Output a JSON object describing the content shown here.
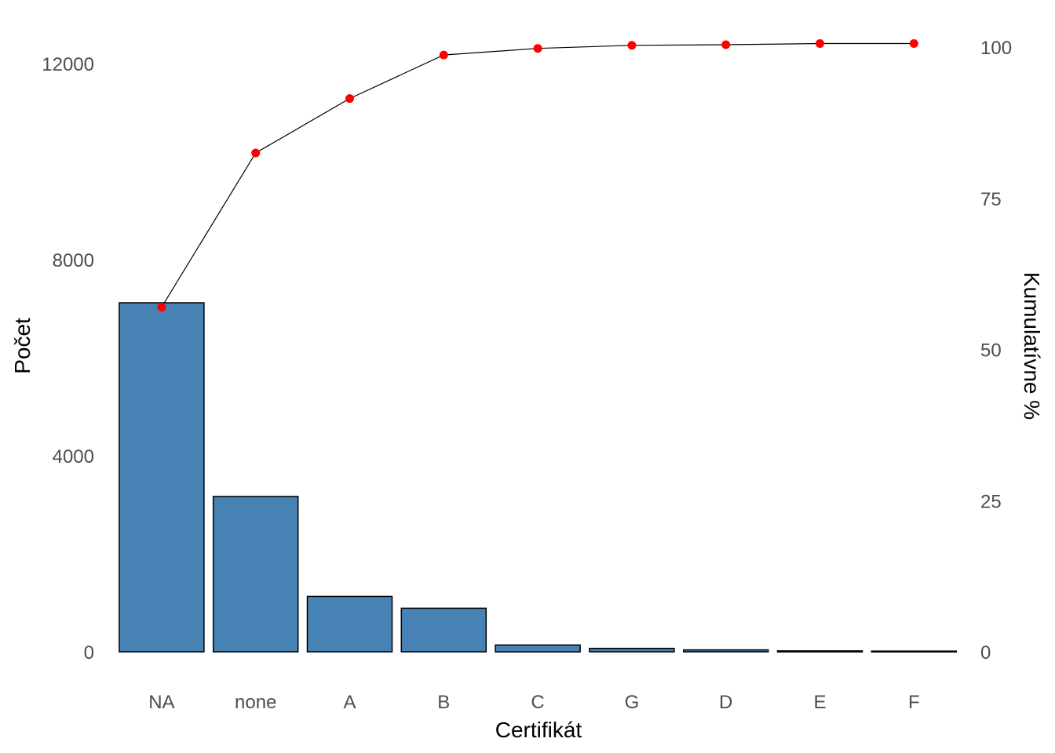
{
  "chart_data": {
    "type": "bar",
    "categories": [
      "NA",
      "none",
      "A",
      "B",
      "C",
      "G",
      "D",
      "E",
      "F"
    ],
    "series": [
      {
        "values": [
          7120,
          3170,
          1130,
          890,
          140,
          70,
          40,
          20,
          15
        ]
      },
      {
        "values": [
          57.0,
          82.5,
          91.5,
          98.7,
          99.8,
          100.3,
          100.4,
          100.6,
          100.6
        ]
      }
    ],
    "xlabel": "Certifikát",
    "ylabel": "Počet",
    "y2label": "Kumulatívne %",
    "ylim": [
      0,
      12400
    ],
    "y2lim": [
      0,
      100.6
    ],
    "yticks": [
      "0",
      "4000",
      "8000",
      "12000"
    ],
    "y2ticks": [
      "0",
      "25",
      "50",
      "75",
      "100"
    ],
    "grid": false,
    "colors": {
      "bar_fill": "#4682B4",
      "bar_stroke": "#000000",
      "line": "#000000",
      "point": "#FF0000"
    }
  }
}
